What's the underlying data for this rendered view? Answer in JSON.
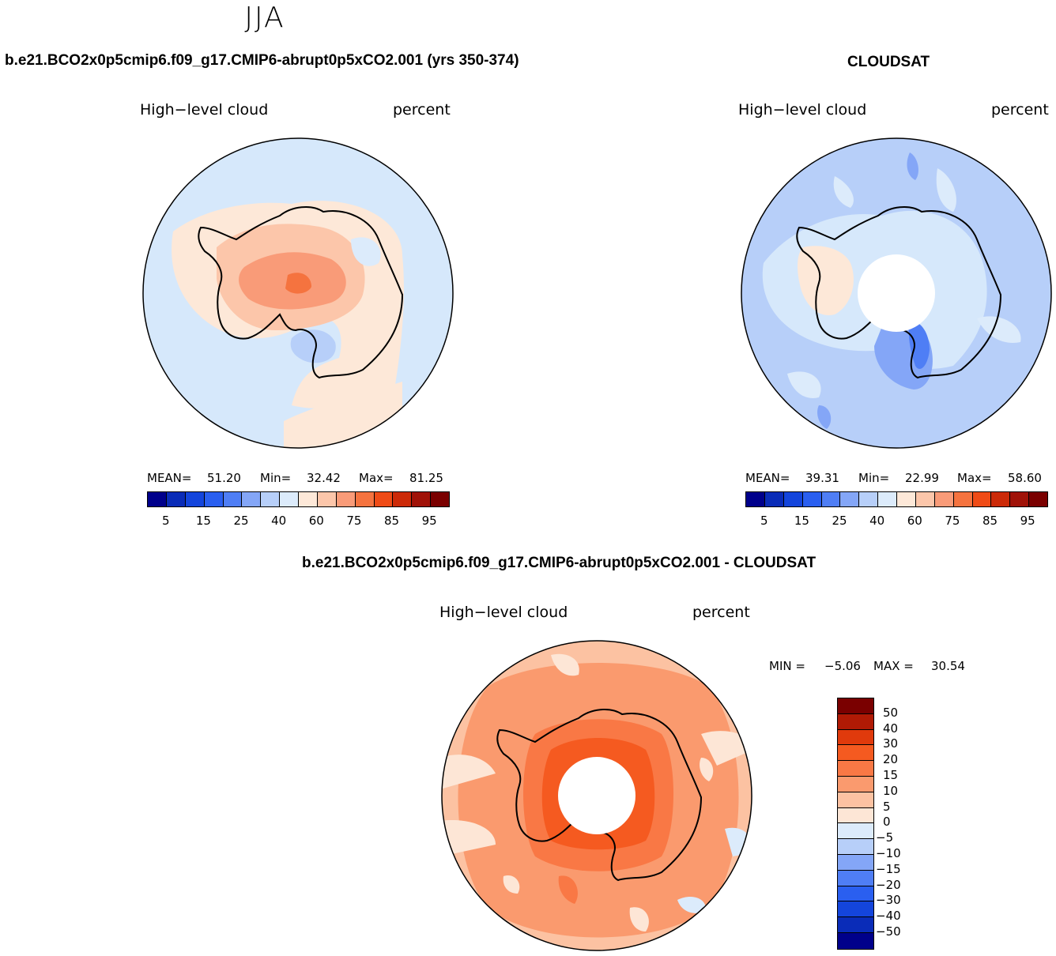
{
  "figure": {
    "season": "JJA",
    "model_title": "b.e21.BCO2x0p5cmip6.f09_g17.CMIP6-abrupt0p5xCO2.001 (yrs 350-374)",
    "obs_title": "CLOUDSAT",
    "diff_title": "b.e21.BCO2x0p5cmip6.f09_g17.CMIP6-abrupt0p5xCO2.001 - CLOUDSAT"
  },
  "panels": {
    "model": {
      "variable": "High−level cloud",
      "units": "percent",
      "mean_label": "MEAN=",
      "mean": "51.20",
      "min_label": "Min=",
      "min": "32.42",
      "max_label": "Max=",
      "max": "81.25"
    },
    "obs": {
      "variable": "High−level cloud",
      "units": "percent",
      "mean_label": "MEAN=",
      "mean": "39.31",
      "min_label": "Min=",
      "min": "22.99",
      "max_label": "Max=",
      "max": "58.60"
    },
    "diff": {
      "variable": "High−level cloud",
      "units": "percent",
      "min_label": "MIN =",
      "min": "−5.06",
      "max_label": "MAX =",
      "max": "30.54"
    }
  },
  "colorbar_abs": {
    "colors": [
      "#00008b",
      "#0a2cb8",
      "#1445dc",
      "#2a5ff0",
      "#4f7ef5",
      "#84a6f7",
      "#b7cff9",
      "#dcebfb",
      "#fde8d8",
      "#fcc6aa",
      "#f99b78",
      "#f5733f",
      "#ef4b16",
      "#cc2a08",
      "#a01208",
      "#7a0000"
    ],
    "ticks": [
      "5",
      "15",
      "25",
      "40",
      "60",
      "75",
      "85",
      "95"
    ]
  },
  "colorbar_diff": {
    "colors": [
      "#7a0000",
      "#b01a05",
      "#e03a0c",
      "#f55a20",
      "#f97845",
      "#fa9a6e",
      "#fcc2a2",
      "#fde6d6",
      "#dcebfb",
      "#b7cff9",
      "#84a6f7",
      "#4f7ef5",
      "#2a5ff0",
      "#1445dc",
      "#0a2cb8",
      "#00008b"
    ],
    "ticks": [
      "50",
      "40",
      "30",
      "20",
      "15",
      "10",
      "5",
      "0",
      "−5",
      "−10",
      "−15",
      "−20",
      "−30",
      "−40",
      "−50"
    ]
  }
}
